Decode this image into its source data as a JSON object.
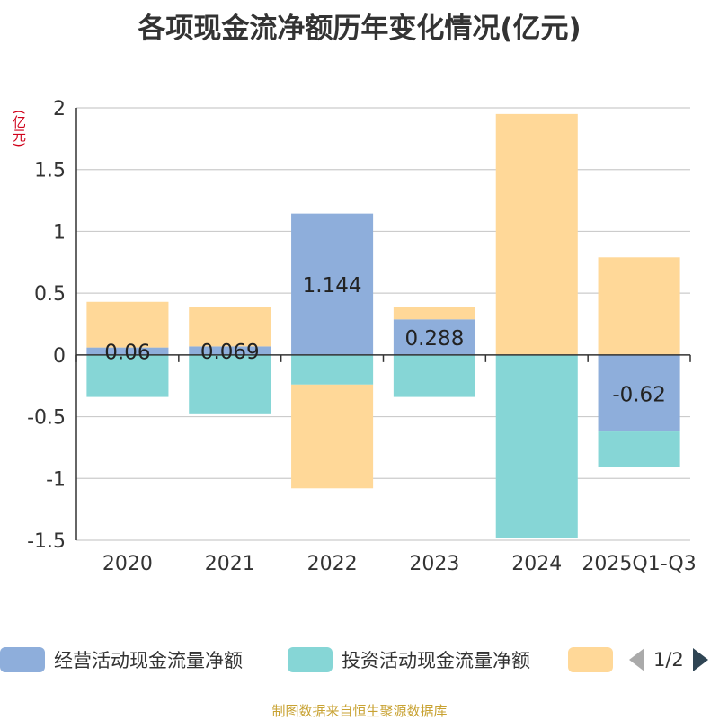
{
  "title": "各项现金流净额历年变化情况(亿元)",
  "source": "制图数据来自恒生聚源数据库",
  "pager": {
    "text": "1/2"
  },
  "chart_data": {
    "type": "bar",
    "stacked": true,
    "ylabel": "(亿元)",
    "ylim": [
      -1.5,
      2
    ],
    "yticks": [
      2,
      1.5,
      1,
      0.5,
      0,
      -0.5,
      -1,
      -1.5
    ],
    "ytick_labels": [
      "2",
      "1.5",
      "1",
      "0.5",
      "0",
      "-0.5",
      "-1",
      "-1.5"
    ],
    "grid": true,
    "legend_position": "bottom",
    "categories": [
      "2020",
      "2021",
      "2022",
      "2023",
      "2024",
      "2025Q1-Q3"
    ],
    "series": [
      {
        "name": "经营活动现金流量净额",
        "color": "#8eaedb",
        "values": [
          0.06,
          0.069,
          1.144,
          0.288,
          0.0,
          -0.62
        ],
        "labels": [
          "0.06",
          "0.069",
          "1.144",
          "0.288",
          "",
          "-0.62"
        ]
      },
      {
        "name": "投资活动现金流量净额",
        "color": "#86d6d6",
        "values": [
          -0.34,
          -0.48,
          -0.24,
          -0.34,
          -1.48,
          -0.29
        ]
      },
      {
        "name": "",
        "color": "#ffd898",
        "values": [
          0.37,
          0.32,
          -0.84,
          0.1,
          1.95,
          0.79
        ]
      }
    ]
  }
}
